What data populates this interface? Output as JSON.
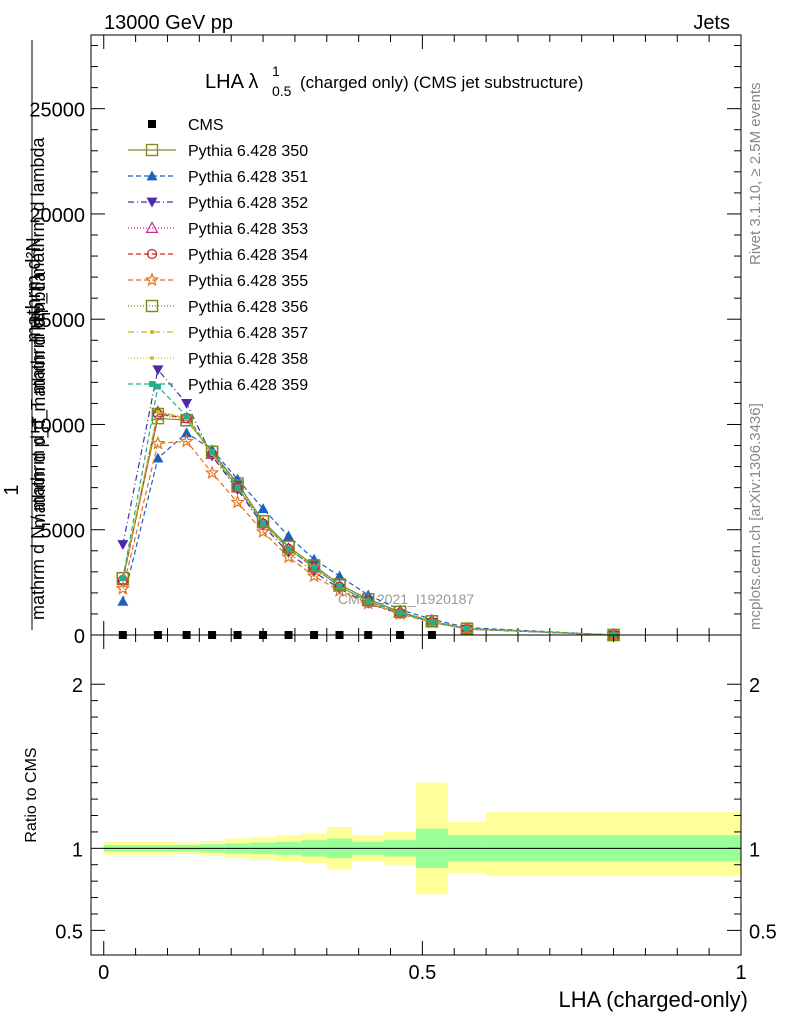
{
  "header": {
    "left": "13000 GeV pp",
    "right": "Jets"
  },
  "side": {
    "rivet": "Rivet 3.1.10, ≥ 2.5M events",
    "mcplots": "mcplots.cern.ch [arXiv:1306.3436]"
  },
  "watermark": "CMS_2021_I1920187",
  "main_title": {
    "pre": "LHA λ",
    "sup": "1",
    "sub": "0.5",
    "post": "(charged only) (CMS jet substructure)"
  },
  "ylabel_main": {
    "numerator": "mathrm d²N",
    "denominator": "mathrm d p_T mathrm d lambda",
    "frac_one": "1",
    "rest": "mathrm d N / mathrm d p_T mathrm d p_T mathrm d lambda"
  },
  "ylabel_ratio": "Ratio to CMS",
  "xlabel": "LHA (charged-only)",
  "chart_data": [
    {
      "type": "line",
      "panel": "main",
      "xlim": [
        -0.02,
        1.0
      ],
      "ylim": [
        0,
        28500
      ],
      "yticks": [
        0,
        5000,
        10000,
        15000,
        20000,
        25000
      ],
      "ytick_labels": [
        "0",
        "5000",
        "10000",
        "15000",
        "20000",
        "25000"
      ],
      "x": [
        0.03,
        0.085,
        0.13,
        0.17,
        0.21,
        0.25,
        0.29,
        0.33,
        0.37,
        0.415,
        0.465,
        0.515,
        0.57,
        0.8
      ],
      "series": [
        {
          "name": "CMS",
          "color": "#000000",
          "marker": "square-filled",
          "dash": "",
          "values": [
            0,
            0,
            0,
            0,
            0,
            0,
            0,
            0,
            0,
            0,
            0,
            0,
            null,
            null
          ]
        },
        {
          "name": "Pythia 6.428 350",
          "color": "#8a8a2a",
          "marker": "square-open",
          "dash": "",
          "values": [
            2700,
            10300,
            10200,
            8700,
            7200,
            5400,
            4200,
            3300,
            2400,
            1700,
            1100,
            650,
            300,
            0
          ]
        },
        {
          "name": "Pythia 6.428 351",
          "color": "#1f5fbf",
          "marker": "triangle-up-filled",
          "dash": "5,3",
          "values": [
            1600,
            8400,
            9600,
            8800,
            7400,
            6000,
            4700,
            3600,
            2800,
            1900,
            1200,
            750,
            350,
            0
          ]
        },
        {
          "name": "Pythia 6.428 352",
          "color": "#4a2aa8",
          "marker": "triangle-down-filled",
          "dash": "6,3,1,3",
          "values": [
            4300,
            12600,
            11000,
            8500,
            6900,
            5200,
            3900,
            3000,
            2200,
            1500,
            1000,
            600,
            280,
            0
          ]
        },
        {
          "name": "Pythia 6.428 353",
          "color": "#c0308a",
          "marker": "triangle-up-open",
          "dash": "1,2",
          "values": [
            2600,
            10600,
            10300,
            8600,
            7000,
            5300,
            4100,
            3200,
            2300,
            1600,
            1050,
            620,
            290,
            0
          ]
        },
        {
          "name": "Pythia 6.428 354",
          "color": "#d02020",
          "marker": "circle-open",
          "dash": "5,3",
          "values": [
            2600,
            10500,
            10300,
            8600,
            7000,
            5300,
            4100,
            3200,
            2300,
            1600,
            1050,
            620,
            290,
            0
          ]
        },
        {
          "name": "Pythia 6.428 355",
          "color": "#e8701a",
          "marker": "star-open",
          "dash": "5,3",
          "values": [
            2200,
            9100,
            9200,
            7700,
            6300,
            4900,
            3700,
            2800,
            2100,
            1500,
            1000,
            600,
            280,
            0
          ]
        },
        {
          "name": "Pythia 6.428 356",
          "color": "#7a8a1a",
          "marker": "square-open",
          "dash": "1,2",
          "values": [
            2700,
            10500,
            10200,
            8700,
            7100,
            5400,
            4200,
            3300,
            2400,
            1700,
            1100,
            650,
            300,
            0
          ]
        },
        {
          "name": "Pythia 6.428 357",
          "color": "#c8b41a",
          "marker": "dot",
          "dash": "6,3,1,3",
          "values": [
            2700,
            10600,
            10300,
            8600,
            7000,
            5300,
            4100,
            3200,
            2300,
            1600,
            1050,
            620,
            290,
            0
          ]
        },
        {
          "name": "Pythia 6.428 358",
          "color": "#c8c81a",
          "marker": "dot",
          "dash": "1,2",
          "values": [
            2700,
            10600,
            10300,
            8600,
            7000,
            5300,
            4100,
            3200,
            2300,
            1600,
            1050,
            620,
            290,
            0
          ]
        },
        {
          "name": "Pythia 6.428 359",
          "color": "#20b08a",
          "marker": "square-small-filled",
          "dash": "5,3",
          "values": [
            2700,
            11800,
            10400,
            8700,
            7000,
            5300,
            4100,
            3200,
            2300,
            1600,
            1050,
            620,
            290,
            0
          ]
        }
      ]
    },
    {
      "type": "area",
      "panel": "ratio",
      "xlim": [
        -0.02,
        1.0
      ],
      "ylim": [
        0.35,
        2.3
      ],
      "yticks": [
        0.5,
        1,
        2
      ],
      "ytick_labels": [
        "0.5",
        "1",
        "2"
      ],
      "xticks": [
        0,
        0.5,
        1
      ],
      "xtick_labels": [
        "0",
        "0.5",
        "1"
      ],
      "ylabel": "Ratio to CMS",
      "reference": 1,
      "bins": [
        {
          "x0": 0.0,
          "x1": 0.06,
          "inner": [
            0.98,
            1.02
          ],
          "outer": [
            0.96,
            1.04
          ]
        },
        {
          "x0": 0.06,
          "x1": 0.11,
          "inner": [
            0.98,
            1.02
          ],
          "outer": [
            0.96,
            1.04
          ]
        },
        {
          "x0": 0.11,
          "x1": 0.15,
          "inner": [
            0.98,
            1.02
          ],
          "outer": [
            0.965,
            1.035
          ]
        },
        {
          "x0": 0.15,
          "x1": 0.19,
          "inner": [
            0.975,
            1.025
          ],
          "outer": [
            0.955,
            1.045
          ]
        },
        {
          "x0": 0.19,
          "x1": 0.23,
          "inner": [
            0.97,
            1.03
          ],
          "outer": [
            0.94,
            1.06
          ]
        },
        {
          "x0": 0.23,
          "x1": 0.27,
          "inner": [
            0.965,
            1.035
          ],
          "outer": [
            0.93,
            1.07
          ]
        },
        {
          "x0": 0.27,
          "x1": 0.31,
          "inner": [
            0.96,
            1.04
          ],
          "outer": [
            0.92,
            1.08
          ]
        },
        {
          "x0": 0.31,
          "x1": 0.35,
          "inner": [
            0.95,
            1.05
          ],
          "outer": [
            0.91,
            1.09
          ]
        },
        {
          "x0": 0.35,
          "x1": 0.39,
          "inner": [
            0.94,
            1.06
          ],
          "outer": [
            0.87,
            1.13
          ]
        },
        {
          "x0": 0.39,
          "x1": 0.44,
          "inner": [
            0.96,
            1.04
          ],
          "outer": [
            0.92,
            1.08
          ]
        },
        {
          "x0": 0.44,
          "x1": 0.49,
          "inner": [
            0.95,
            1.05
          ],
          "outer": [
            0.9,
            1.1
          ]
        },
        {
          "x0": 0.49,
          "x1": 0.54,
          "inner": [
            0.88,
            1.12
          ],
          "outer": [
            0.72,
            1.4
          ]
        },
        {
          "x0": 0.54,
          "x1": 0.6,
          "inner": [
            0.92,
            1.08
          ],
          "outer": [
            0.85,
            1.16
          ]
        },
        {
          "x0": 0.6,
          "x1": 1.0,
          "inner": [
            0.92,
            1.08
          ],
          "outer": [
            0.83,
            1.22
          ]
        }
      ]
    }
  ]
}
